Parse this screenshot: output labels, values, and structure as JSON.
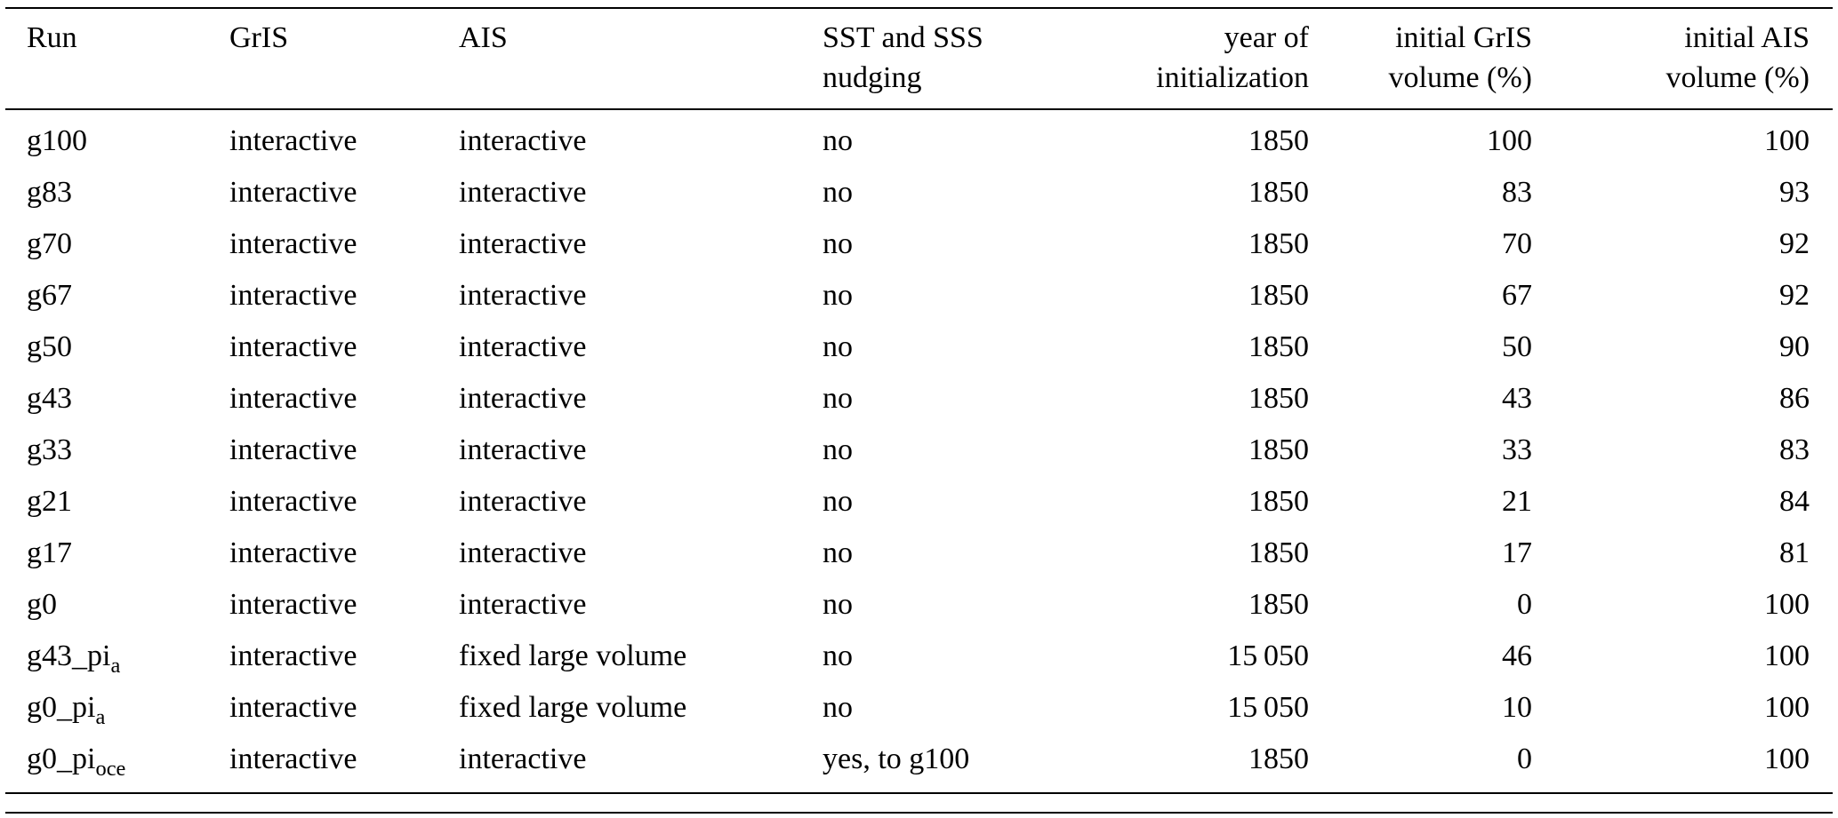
{
  "page": {
    "background_color": "#ffffff",
    "text_color": "#000000"
  },
  "table": {
    "columns": [
      {
        "id": "run",
        "label": "Run",
        "lines": [
          "Run"
        ]
      },
      {
        "id": "gris",
        "label": "GrIS",
        "lines": [
          "GrIS"
        ]
      },
      {
        "id": "ais",
        "label": "AIS",
        "lines": [
          "AIS"
        ]
      },
      {
        "id": "nudging",
        "label": "SST and SSS nudging",
        "lines": [
          "SST and SSS",
          "nudging"
        ]
      },
      {
        "id": "year",
        "label": "year of initialization",
        "lines": [
          "year of",
          "initialization"
        ]
      },
      {
        "id": "gris-volume",
        "label": "initial GrIS volume (%)",
        "lines": [
          "initial GrIS",
          "volume (%)"
        ]
      },
      {
        "id": "ais-volume",
        "label": "initial AIS volume (%)",
        "lines": [
          "initial AIS",
          "volume (%)"
        ]
      }
    ],
    "rows": [
      {
        "run": {
          "base": "g100",
          "sub": ""
        },
        "gris": "interactive",
        "ais": "interactive",
        "nudging": "no",
        "year": "1850",
        "gris_volume": "100",
        "ais_volume": "100"
      },
      {
        "run": {
          "base": "g83",
          "sub": ""
        },
        "gris": "interactive",
        "ais": "interactive",
        "nudging": "no",
        "year": "1850",
        "gris_volume": "83",
        "ais_volume": "93"
      },
      {
        "run": {
          "base": "g70",
          "sub": ""
        },
        "gris": "interactive",
        "ais": "interactive",
        "nudging": "no",
        "year": "1850",
        "gris_volume": "70",
        "ais_volume": "92"
      },
      {
        "run": {
          "base": "g67",
          "sub": ""
        },
        "gris": "interactive",
        "ais": "interactive",
        "nudging": "no",
        "year": "1850",
        "gris_volume": "67",
        "ais_volume": "92"
      },
      {
        "run": {
          "base": "g50",
          "sub": ""
        },
        "gris": "interactive",
        "ais": "interactive",
        "nudging": "no",
        "year": "1850",
        "gris_volume": "50",
        "ais_volume": "90"
      },
      {
        "run": {
          "base": "g43",
          "sub": ""
        },
        "gris": "interactive",
        "ais": "interactive",
        "nudging": "no",
        "year": "1850",
        "gris_volume": "43",
        "ais_volume": "86"
      },
      {
        "run": {
          "base": "g33",
          "sub": ""
        },
        "gris": "interactive",
        "ais": "interactive",
        "nudging": "no",
        "year": "1850",
        "gris_volume": "33",
        "ais_volume": "83"
      },
      {
        "run": {
          "base": "g21",
          "sub": ""
        },
        "gris": "interactive",
        "ais": "interactive",
        "nudging": "no",
        "year": "1850",
        "gris_volume": "21",
        "ais_volume": "84"
      },
      {
        "run": {
          "base": "g17",
          "sub": ""
        },
        "gris": "interactive",
        "ais": "interactive",
        "nudging": "no",
        "year": "1850",
        "gris_volume": "17",
        "ais_volume": "81"
      },
      {
        "run": {
          "base": "g0",
          "sub": ""
        },
        "gris": "interactive",
        "ais": "interactive",
        "nudging": "no",
        "year": "1850",
        "gris_volume": "0",
        "ais_volume": "100"
      },
      {
        "run": {
          "base": "g43_pi",
          "sub": "a"
        },
        "gris": "interactive",
        "ais": "fixed large volume",
        "nudging": "no",
        "year": "15 050",
        "gris_volume": "46",
        "ais_volume": "100"
      },
      {
        "run": {
          "base": "g0_pi",
          "sub": "a"
        },
        "gris": "interactive",
        "ais": "fixed large volume",
        "nudging": "no",
        "year": "15 050",
        "gris_volume": "10",
        "ais_volume": "100"
      },
      {
        "run": {
          "base": "g0_pi",
          "sub": "oce"
        },
        "gris": "interactive",
        "ais": "interactive",
        "nudging": "yes, to g100",
        "year": "1850",
        "gris_volume": "0",
        "ais_volume": "100"
      }
    ]
  }
}
